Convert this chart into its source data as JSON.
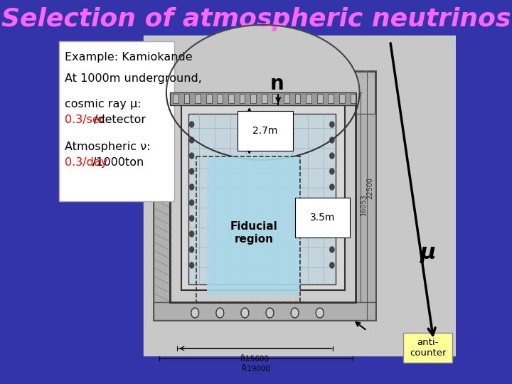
{
  "title": "Selection of atmospheric neutrinos",
  "title_color": "#ff66ff",
  "bg_color": "#3333aa",
  "diagram_bg": "#d0d0d0",
  "white": "#ffffff",
  "black": "#000000",
  "red": "#cc0000",
  "fiducial_color": "#aad8e8",
  "anticounter_bg": "#ffff99",
  "label_n": "n",
  "label_mu": "μ",
  "label_fiducial": "Fiducial\nregion",
  "label_27": "2.7m",
  "label_35": "3.5m",
  "label_anticounter": "anti-\ncounter",
  "dim_22500": "22500",
  "dim_16053": "16053",
  "dim_15600": "Ř15600",
  "dim_19000": "Ř19000"
}
